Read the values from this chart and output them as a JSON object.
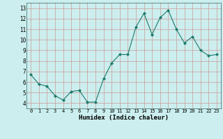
{
  "x": [
    0,
    1,
    2,
    3,
    4,
    5,
    6,
    7,
    8,
    9,
    10,
    11,
    12,
    13,
    14,
    15,
    16,
    17,
    18,
    19,
    20,
    21,
    22,
    23
  ],
  "y": [
    6.7,
    5.8,
    5.6,
    4.7,
    4.3,
    5.1,
    5.2,
    4.1,
    4.1,
    6.3,
    7.8,
    8.6,
    8.6,
    11.2,
    12.5,
    10.5,
    12.1,
    12.8,
    11.0,
    9.7,
    10.3,
    9.0,
    8.5,
    8.6
  ],
  "xlabel": "Humidex (Indice chaleur)",
  "xlim": [
    -0.5,
    23.5
  ],
  "ylim": [
    3.5,
    13.5
  ],
  "yticks": [
    4,
    5,
    6,
    7,
    8,
    9,
    10,
    11,
    12,
    13
  ],
  "xticks": [
    0,
    1,
    2,
    3,
    4,
    5,
    6,
    7,
    8,
    9,
    10,
    11,
    12,
    13,
    14,
    15,
    16,
    17,
    18,
    19,
    20,
    21,
    22,
    23
  ],
  "line_color": "#1a7a6a",
  "marker_color": "#1a7a6a",
  "plot_bg": "#cceeee",
  "outer_bg": "#cceeee",
  "grid_color": "#cc9999"
}
